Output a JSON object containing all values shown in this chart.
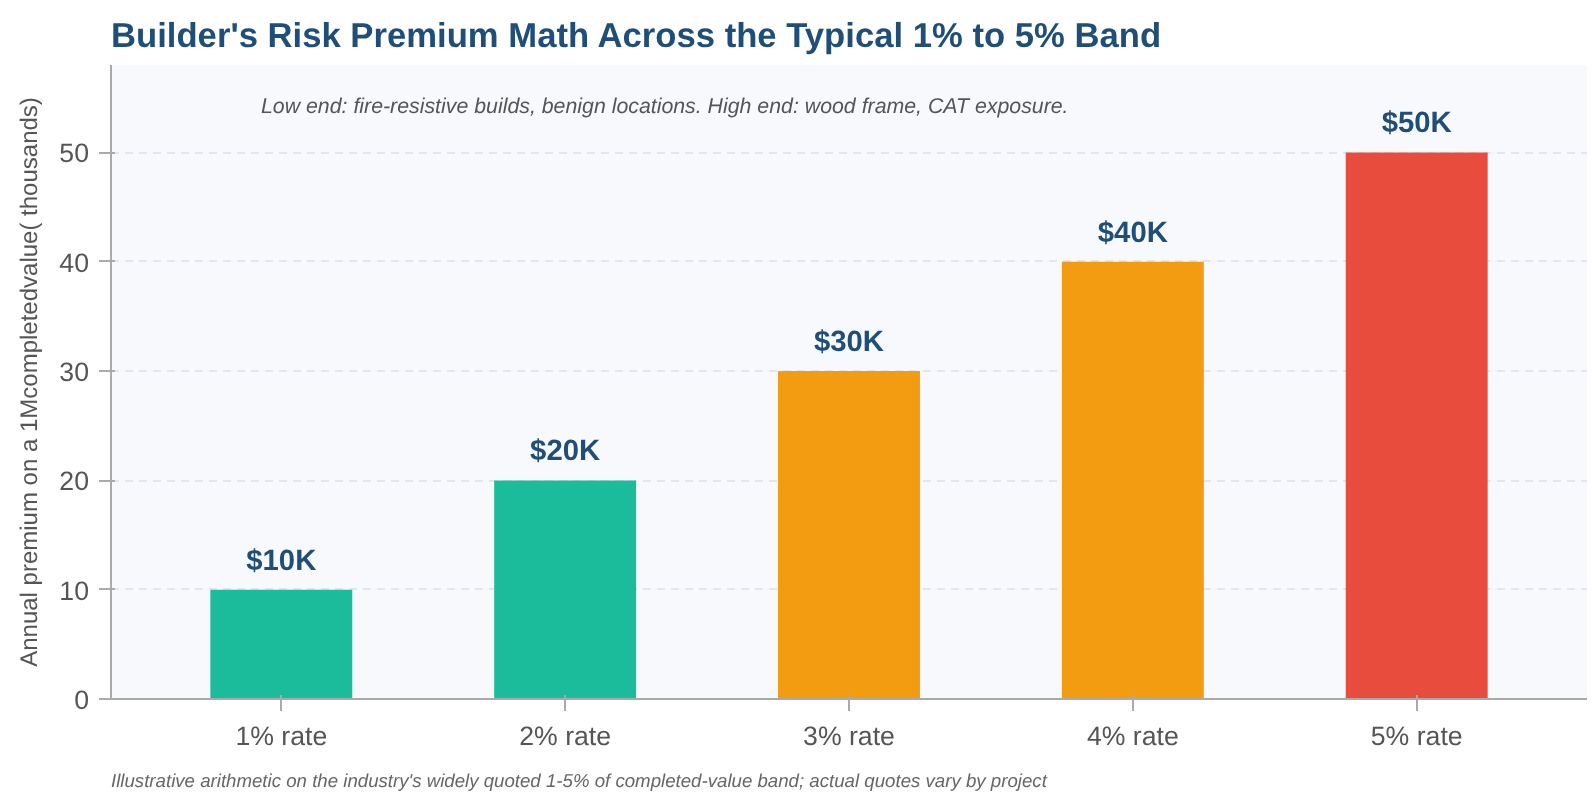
{
  "chart_data": {
    "type": "bar",
    "title": "Builder's Risk Premium Math Across the Typical 1% to 5% Band",
    "ylabel": "Annual premium on a 1Mcompletedvalue( thousands)",
    "categories": [
      "1% rate",
      "2% rate",
      "3% rate",
      "4% rate",
      "5% rate"
    ],
    "values": [
      10,
      20,
      30,
      40,
      50
    ],
    "colors": [
      "#1abc9c",
      "#1abc9c",
      "#f39c12",
      "#f39c12",
      "#e74c3c"
    ],
    "value_labels": [
      "$10K",
      "$20K",
      "$30K",
      "$40K",
      "$50K"
    ],
    "ylim": [
      0,
      58
    ],
    "yticks": [
      0,
      10,
      20,
      30,
      40,
      50
    ],
    "grid": "y",
    "annotations": [
      "Low end: fire-resistive builds, benign locations. High end: wood frame, CAT exposure.",
      "Illustrative arithmetic on the industry's widely quoted 1-5% of completed-value band; actual quotes vary by project"
    ]
  }
}
